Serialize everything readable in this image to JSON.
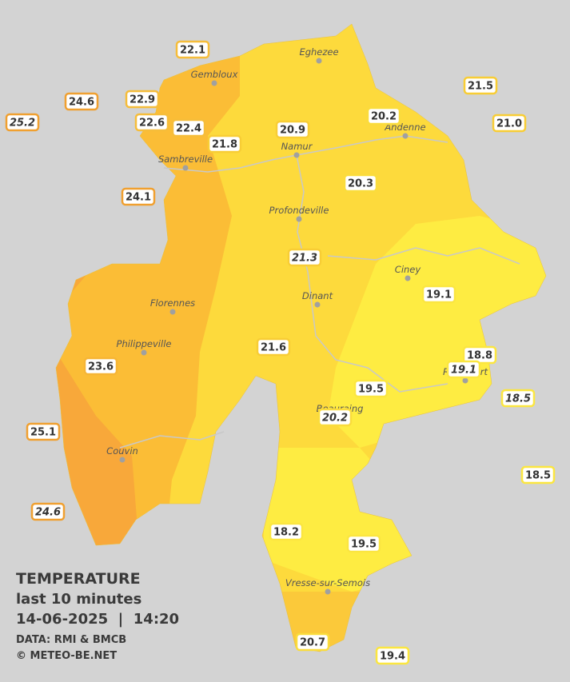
{
  "legend": {
    "title": "TEMPERATURE",
    "subtitle": "last 10 minutes",
    "datetime": "14-06-2025  |  14:20",
    "source": "DATA: RMI & BMCB",
    "copyright": "© METEO-BE.NET"
  },
  "cities": [
    "Eghezee",
    "Gembloux",
    "Andenne",
    "Namur",
    "Sambreville",
    "Profondeville",
    "Ciney",
    "Dinant",
    "Florennes",
    "Philippeville",
    "Couvin",
    "Vresse-sur-Semois",
    "Rochefort",
    "Beauraing"
  ],
  "stations": [
    {
      "label": "22.1",
      "color": "#f6bd3a"
    },
    {
      "label": "24.6",
      "color": "#f0a030"
    },
    {
      "label": "22.9",
      "color": "#f6bd3a"
    },
    {
      "label": "25.2",
      "color": "#f0a030",
      "italic": true
    },
    {
      "label": "22.6",
      "color": "#f6bd3a"
    },
    {
      "label": "22.4",
      "color": "#f6bd3a"
    },
    {
      "label": "21.8",
      "color": "#f8cd35"
    },
    {
      "label": "20.9",
      "color": "#f8cd35"
    },
    {
      "label": "20.2",
      "color": "#fadc3c"
    },
    {
      "label": "21.5",
      "color": "#f8cd35"
    },
    {
      "label": "21.0",
      "color": "#f8cd35"
    },
    {
      "label": "24.1",
      "color": "#f0a030"
    },
    {
      "label": "20.3",
      "color": "#fadc3c"
    },
    {
      "label": "21.3",
      "color": "#f8cd35",
      "italic": true
    },
    {
      "label": "19.1",
      "color": "#fbe640"
    },
    {
      "label": "21.6",
      "color": "#f8cd35"
    },
    {
      "label": "23.6",
      "color": "#f6b535"
    },
    {
      "label": "18.8",
      "color": "#fbe640"
    },
    {
      "label": "19.1",
      "color": "#fbe640",
      "italic": true
    },
    {
      "label": "19.5",
      "color": "#fbe640"
    },
    {
      "label": "18.5",
      "color": "#fbe640",
      "italic": true
    },
    {
      "label": "20.2",
      "color": "#fadc3c",
      "italic": true
    },
    {
      "label": "25.1",
      "color": "#f0a030"
    },
    {
      "label": "18.5",
      "color": "#fbe640"
    },
    {
      "label": "24.6",
      "color": "#f0a030",
      "italic": true
    },
    {
      "label": "18.2",
      "color": "#fbe640"
    },
    {
      "label": "19.5",
      "color": "#fbe640"
    },
    {
      "label": "20.7",
      "color": "#fadc3c"
    },
    {
      "label": "19.4",
      "color": "#fbe640"
    }
  ]
}
